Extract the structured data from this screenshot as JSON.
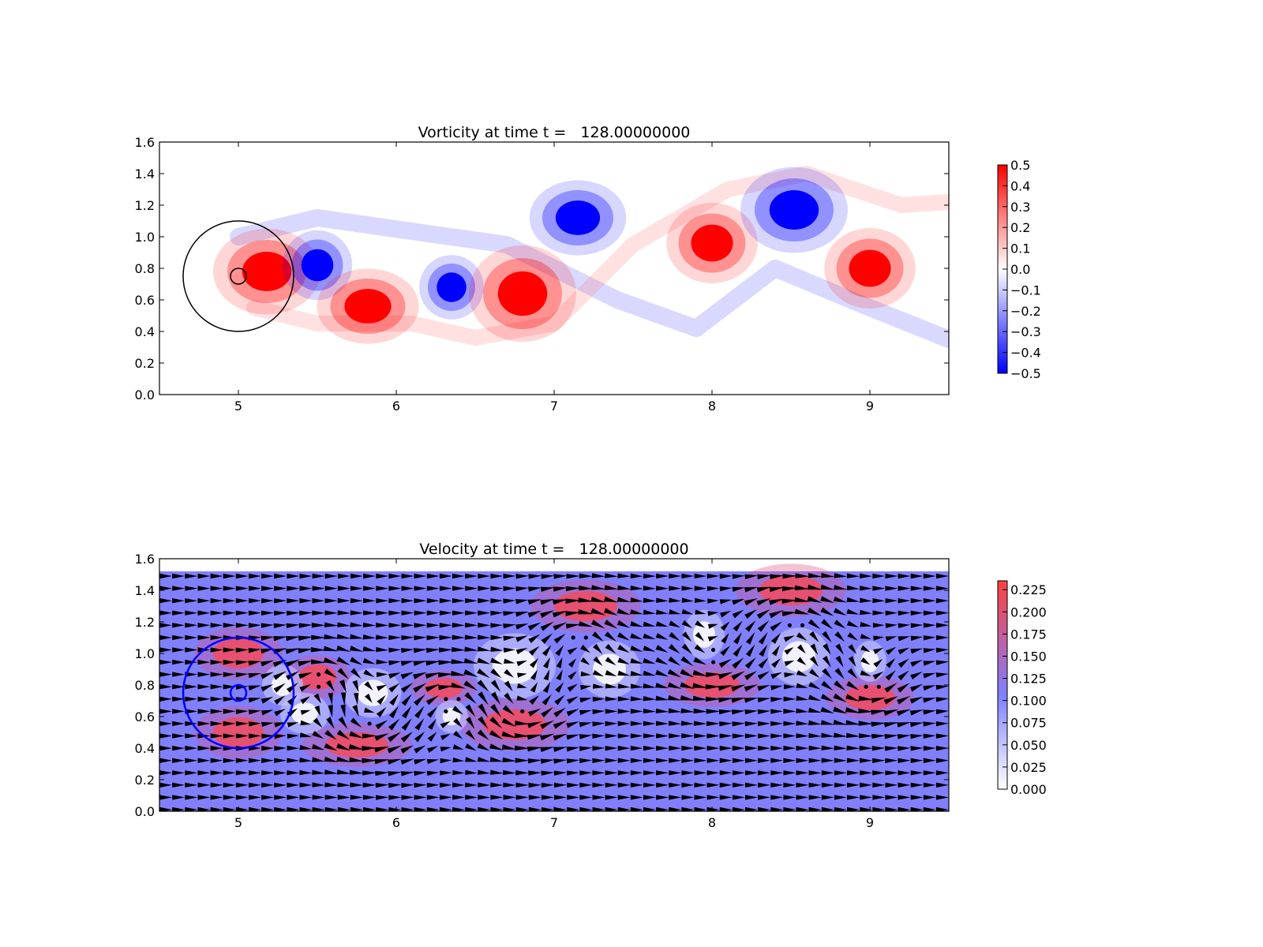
{
  "chart_data": [
    {
      "type": "heatmap",
      "title": "Vorticity at time t =   128.00000000",
      "xlim": [
        4.5,
        9.5
      ],
      "ylim": [
        0.0,
        1.6
      ],
      "x_ticks": [
        "5",
        "6",
        "7",
        "8",
        "9"
      ],
      "y_ticks": [
        "0.0",
        "0.2",
        "0.4",
        "0.6",
        "0.8",
        "1.0",
        "1.2",
        "1.4",
        "1.6"
      ],
      "colorbar": {
        "range": [
          -0.5,
          0.5
        ],
        "ticks": [
          "0.5",
          "0.4",
          "0.3",
          "0.2",
          "0.1",
          "0.0",
          "−0.1",
          "−0.2",
          "−0.3",
          "−0.4",
          "−0.5"
        ],
        "low_color": "#0000ff",
        "mid_color": "#ffffff",
        "high_color": "#ff0000"
      },
      "circles": [
        {
          "cx": 5.0,
          "cy": 0.75,
          "r": 0.35,
          "color": "#000000"
        },
        {
          "cx": 5.0,
          "cy": 0.75,
          "r": 0.05,
          "color": "#000000"
        }
      ],
      "vortices": [
        {
          "x": 5.18,
          "y": 0.78,
          "value": 0.5
        },
        {
          "x": 5.5,
          "y": 0.82,
          "value": -0.5
        },
        {
          "x": 5.82,
          "y": 0.56,
          "value": 0.5
        },
        {
          "x": 6.35,
          "y": 0.68,
          "value": -0.5
        },
        {
          "x": 6.8,
          "y": 0.64,
          "value": 0.5
        },
        {
          "x": 7.15,
          "y": 1.12,
          "value": -0.5
        },
        {
          "x": 8.0,
          "y": 0.96,
          "value": 0.5
        },
        {
          "x": 8.52,
          "y": 1.17,
          "value": -0.5
        },
        {
          "x": 9.0,
          "y": 0.8,
          "value": 0.5
        }
      ]
    },
    {
      "type": "heatmap",
      "title": "Velocity at time t =   128.00000000",
      "xlim": [
        4.5,
        9.5
      ],
      "ylim": [
        0.0,
        1.6
      ],
      "x_ticks": [
        "5",
        "6",
        "7",
        "8",
        "9"
      ],
      "y_ticks": [
        "0.0",
        "0.2",
        "0.4",
        "0.6",
        "0.8",
        "1.0",
        "1.2",
        "1.4",
        "1.6"
      ],
      "field_ylim": [
        0.0,
        1.52
      ],
      "colorbar": {
        "range": [
          0.0,
          0.235
        ],
        "ticks": [
          "0.225",
          "0.200",
          "0.175",
          "0.150",
          "0.125",
          "0.100",
          "0.075",
          "0.050",
          "0.025",
          "0.000"
        ],
        "low_color": "#ffffff",
        "mid_color": "#8080ff",
        "high_color": "#ff4040"
      },
      "circles": [
        {
          "cx": 5.0,
          "cy": 0.75,
          "r": 0.35,
          "color": "#0000ff"
        },
        {
          "cx": 5.0,
          "cy": 0.75,
          "r": 0.05,
          "color": "#0000ff"
        }
      ],
      "quiver_color": "#000000"
    }
  ]
}
